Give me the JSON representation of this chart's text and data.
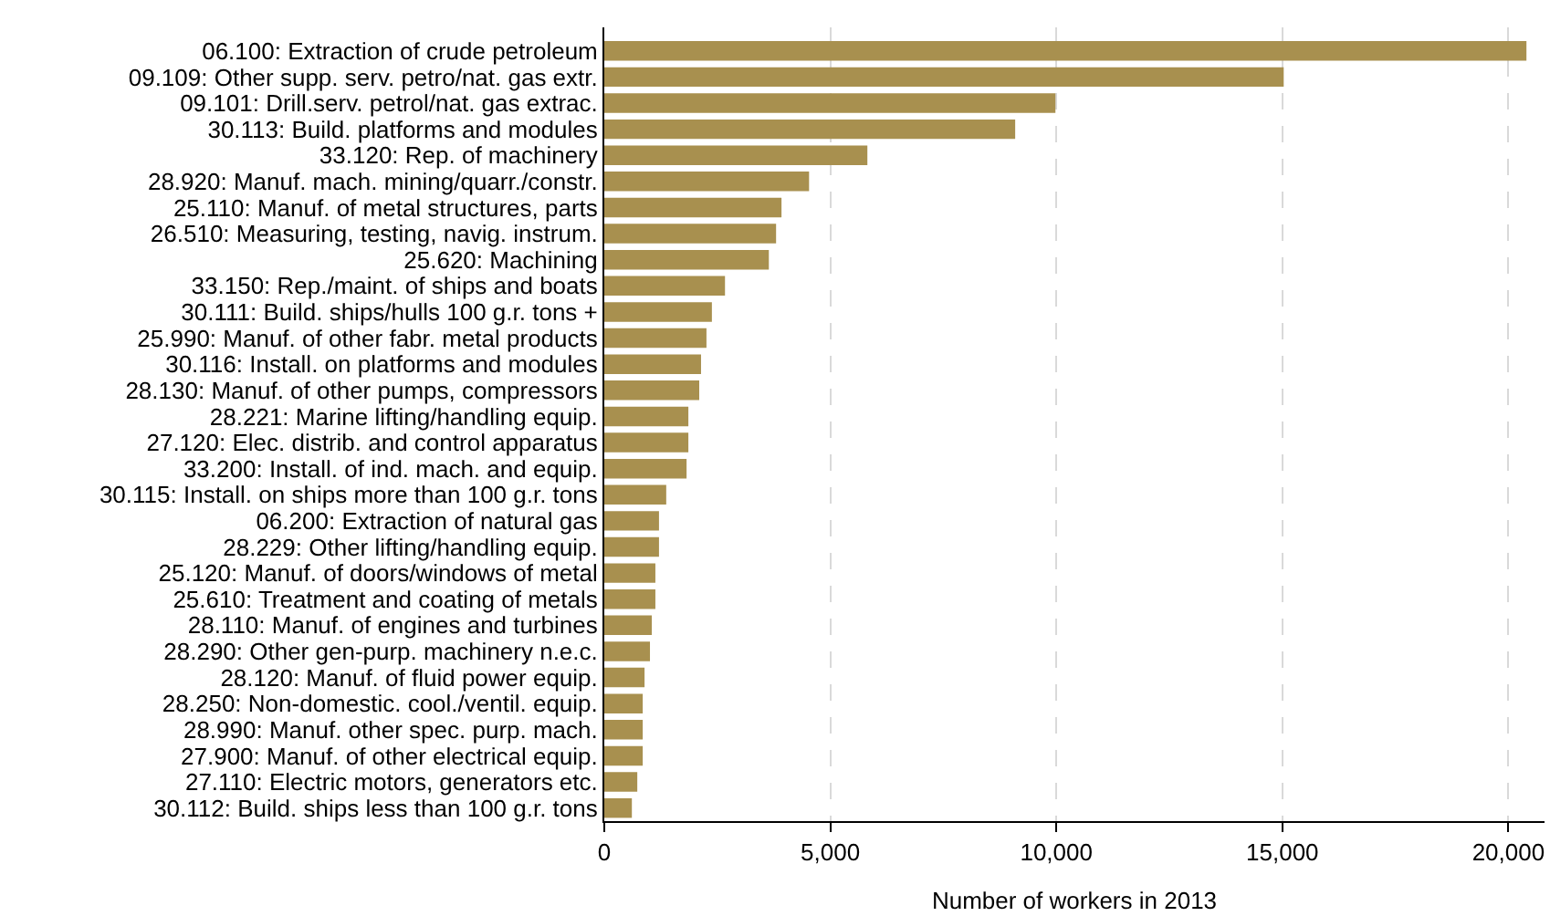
{
  "chart_data": {
    "type": "bar",
    "orientation": "horizontal",
    "xlabel": "Number of workers in 2013",
    "categories": [
      "06.100: Extraction of crude petroleum",
      "09.109: Other supp. serv. petro/nat. gas extr.",
      "09.101: Drill.serv. petrol/nat. gas extrac.",
      "30.113: Build. platforms and modules",
      "33.120: Rep. of machinery",
      "28.920: Manuf. mach. mining/quarr./constr.",
      "25.110: Manuf. of metal structures, parts",
      "26.510: Measuring, testing, navig. instrum.",
      "25.620: Machining",
      "33.150: Rep./maint. of ships and boats",
      "30.111: Build. ships/hulls 100 g.r. tons +",
      "25.990: Manuf. of other fabr. metal products",
      "30.116: Install. on platforms and modules",
      "28.130: Manuf. of other pumps, compressors",
      "28.221: Marine lifting/handling equip.",
      "27.120: Elec. distrib. and control apparatus",
      "33.200: Install. of ind. mach. and equip.",
      "30.115: Install. on ships more than 100 g.r. tons",
      "06.200: Extraction of natural gas",
      "28.229: Other lifting/handling equip.",
      "25.120: Manuf. of doors/windows of metal",
      "25.610: Treatment and coating of metals",
      "28.110: Manuf. of engines and turbines",
      "28.290: Other gen-purp. machinery n.e.c.",
      "28.120: Manuf. of fluid power equip.",
      "28.250: Non-domestic. cool./ventil. equip.",
      "28.990: Manuf. other spec. purp. mach.",
      "27.900: Manuf. of other electrical equip.",
      "27.110: Electric motors, generators etc.",
      "30.112: Build. ships less than 100 g.r. tons"
    ],
    "values": [
      20400,
      15030,
      9980,
      9090,
      5820,
      4530,
      3920,
      3800,
      3640,
      2670,
      2380,
      2260,
      2140,
      2100,
      1860,
      1860,
      1820,
      1370,
      1210,
      1210,
      1130,
      1130,
      1050,
      1010,
      890,
      850,
      850,
      850,
      730,
      610
    ],
    "color": "#a8904f",
    "xlim": [
      0,
      20800
    ],
    "xticks": [
      {
        "value": 0,
        "label": "0"
      },
      {
        "value": 5000,
        "label": "5,000"
      },
      {
        "value": 10000,
        "label": "10,000"
      },
      {
        "value": 15000,
        "label": "15,000"
      },
      {
        "value": 20000,
        "label": "20,000"
      }
    ],
    "grid": "x"
  }
}
